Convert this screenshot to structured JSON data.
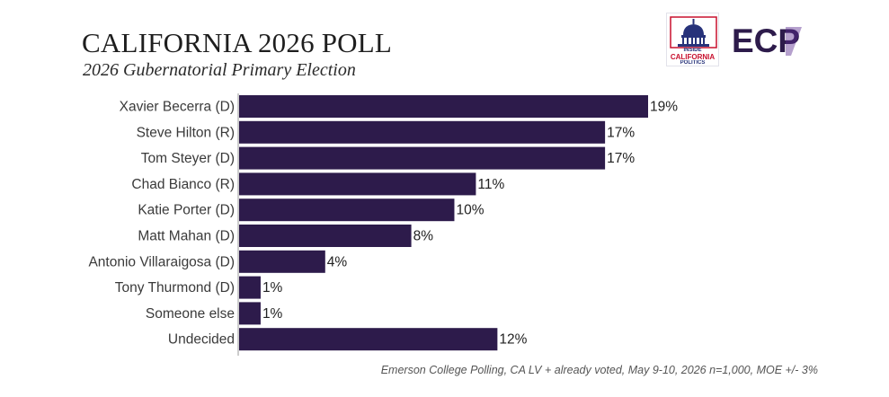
{
  "chart_data": {
    "type": "bar",
    "orientation": "horizontal",
    "title": "CALIFORNIA 2026 POLL",
    "subtitle": "2026 Gubernatorial Primary Election",
    "categories": [
      "Xavier Becerra (D)",
      "Steve Hilton (R)",
      "Tom Steyer (D)",
      "Chad Bianco (R)",
      "Katie Porter (D)",
      "Matt Mahan (D)",
      "Antonio Villaraigosa (D)",
      "Tony Thurmond (D)",
      "Someone else",
      "Undecided"
    ],
    "values": [
      19,
      17,
      17,
      11,
      10,
      8,
      4,
      1,
      1,
      12
    ],
    "value_labels": [
      "19%",
      "17%",
      "17%",
      "11%",
      "10%",
      "8%",
      "4%",
      "1%",
      "1%",
      "12%"
    ],
    "unit": "%",
    "xlim": [
      0,
      19
    ],
    "grid": false,
    "legend": "none",
    "bar_color": "#2d1b4b",
    "source": "Emerson College Polling, CA LV + already voted, May 9-10, 2026 n=1,000, MOE +/- 3%"
  },
  "logos": {
    "inside_california_politics": {
      "line1": "INSIDE",
      "line2": "CALIFORNIA",
      "line3": "POLITICS",
      "accent_color": "#c8102e",
      "blue_color": "#27327a"
    },
    "ecp": {
      "text": "ECP",
      "color": "#2d1b4b",
      "accent_color": "#5c2d91"
    }
  }
}
